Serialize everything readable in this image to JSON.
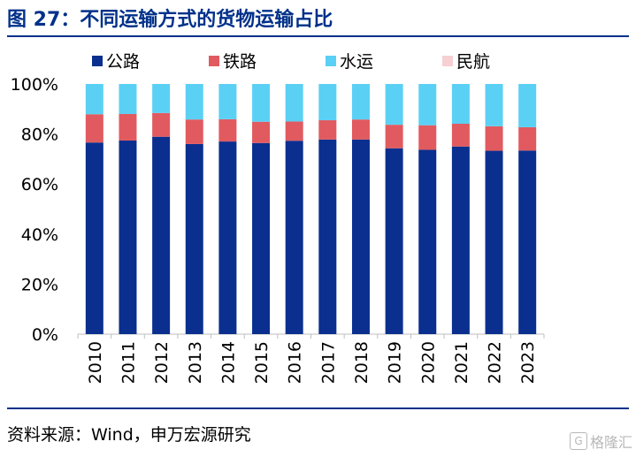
{
  "title": "图 27：不同运输方式的货物运输占比",
  "source": "资料来源：Wind，申万宏源研究",
  "watermark": "格隆汇",
  "watermark_logo": "G",
  "colors": {
    "road": "#0a2f8f",
    "rail": "#e15a5f",
    "water": "#5bd0f5",
    "air": "#f6d0d2",
    "brand": "#00308a"
  },
  "chart_data": {
    "type": "bar",
    "stacked": true,
    "categories": [
      "2010",
      "2011",
      "2012",
      "2013",
      "2014",
      "2015",
      "2016",
      "2017",
      "2018",
      "2019",
      "2020",
      "2021",
      "2022",
      "2023"
    ],
    "series": [
      {
        "name": "公路",
        "color": "#0a2f8f",
        "values": [
          76.6,
          77.4,
          78.9,
          76.0,
          77.0,
          76.4,
          77.3,
          77.8,
          77.8,
          74.3,
          73.7,
          75.0,
          73.3,
          73.4
        ]
      },
      {
        "name": "铁路",
        "color": "#e15a5f",
        "values": [
          11.3,
          10.6,
          9.5,
          9.8,
          8.9,
          8.5,
          7.7,
          7.7,
          8.0,
          9.4,
          9.8,
          9.1,
          9.8,
          9.3
        ]
      },
      {
        "name": "水运",
        "color": "#5bd0f5",
        "values": [
          12.1,
          12.0,
          11.6,
          14.2,
          14.1,
          15.1,
          15.0,
          14.5,
          14.2,
          16.3,
          16.5,
          15.9,
          16.9,
          17.3
        ]
      },
      {
        "name": "民航",
        "color": "#f6d0d2",
        "values": [
          0.01,
          0.01,
          0.01,
          0.01,
          0.01,
          0.01,
          0.01,
          0.01,
          0.01,
          0.01,
          0.01,
          0.01,
          0.01,
          0.01
        ]
      }
    ],
    "y_ticks": [
      "0%",
      "20%",
      "40%",
      "60%",
      "80%",
      "100%"
    ],
    "ylim": [
      0,
      100
    ],
    "legend_position": "top",
    "grid": false
  }
}
